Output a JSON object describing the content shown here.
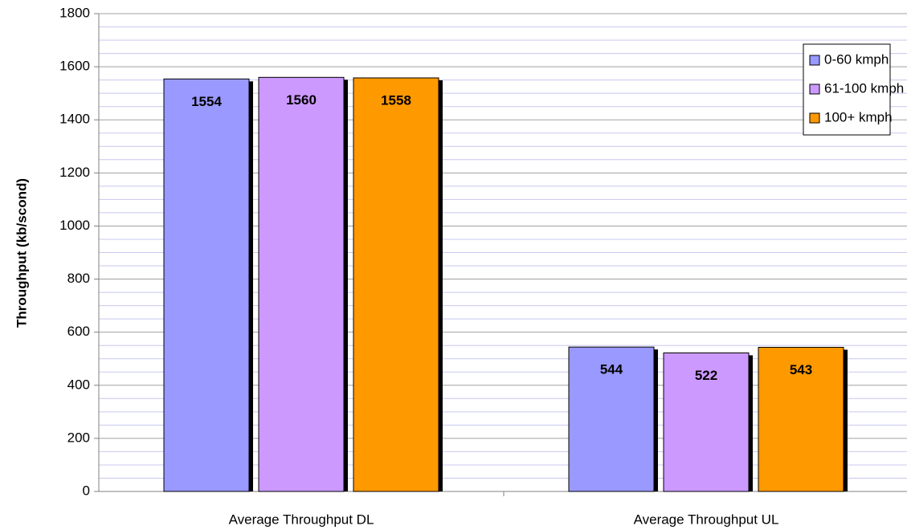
{
  "chart_data": {
    "type": "bar",
    "categories": [
      "Average Throughput DL",
      "Average Throughput UL"
    ],
    "series": [
      {
        "name": "0-60 kmph",
        "color": "#9999ff",
        "values": [
          1554,
          544
        ]
      },
      {
        "name": "61-100 kmph",
        "color": "#cc99ff",
        "values": [
          1560,
          522
        ]
      },
      {
        "name": "100+ kmph",
        "color": "#ff9900",
        "values": [
          1558,
          543
        ]
      }
    ],
    "y_label": "Throughput (kb/scond)",
    "ylim": [
      0,
      1800
    ],
    "yticks": [
      0,
      200,
      400,
      600,
      800,
      1000,
      1200,
      1400,
      1600,
      1800
    ],
    "yminorticks": [
      50,
      100,
      150,
      250,
      300,
      350,
      450,
      500,
      550,
      650,
      700,
      750,
      850,
      900,
      950,
      1050,
      1100,
      1150,
      1250,
      1300,
      1350,
      1450,
      1500,
      1550,
      1650,
      1700,
      1750
    ],
    "grid": true,
    "legend": "upper right"
  }
}
